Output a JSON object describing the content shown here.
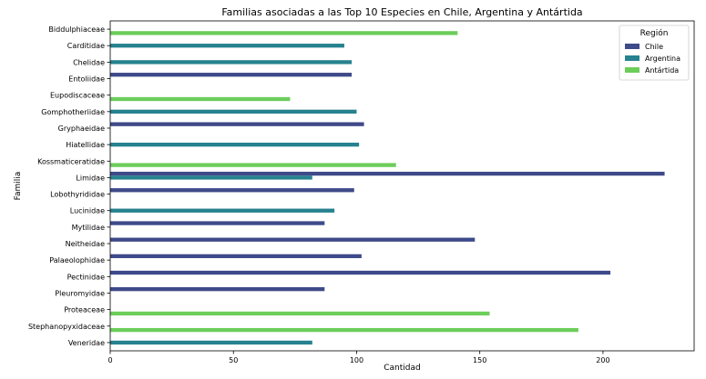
{
  "chart_data": {
    "type": "bar",
    "orientation": "horizontal",
    "title": "Familias asociadas a las Top 10 Especies en Chile, Argentina y Antártida",
    "xlabel": "Cantidad",
    "ylabel": "Familia",
    "xlim": [
      0,
      237
    ],
    "xticks": [
      0,
      50,
      100,
      150,
      200
    ],
    "grid": false,
    "legend": {
      "title": "Región",
      "placement": "top-right"
    },
    "categories": [
      "Biddulphiaceae",
      "Carditidae",
      "Chelidae",
      "Entoliidae",
      "Eupodiscaceae",
      "Gomphotheriidae",
      "Gryphaeidae",
      "Hiatellidae",
      "Kossmaticeratidae",
      "Limidae",
      "Lobothyrididae",
      "Lucinidae",
      "Mytilidae",
      "Neitheidae",
      "Palaeolophidae",
      "Pectinidae",
      "Pleuromyidae",
      "Proteaceae",
      "Stephanopyxidaceae",
      "Veneridae"
    ],
    "series": [
      {
        "name": "Chile",
        "color": "#3e4a89",
        "values": [
          null,
          null,
          null,
          98,
          null,
          null,
          103,
          null,
          null,
          225,
          99,
          null,
          87,
          148,
          102,
          203,
          87,
          null,
          null,
          null
        ]
      },
      {
        "name": "Argentina",
        "color": "#26828e",
        "values": [
          null,
          95,
          98,
          null,
          null,
          100,
          null,
          101,
          null,
          82,
          null,
          91,
          null,
          null,
          null,
          null,
          null,
          null,
          null,
          82
        ]
      },
      {
        "name": "Antártida",
        "color": "#6ccd5a",
        "values": [
          141,
          null,
          null,
          null,
          73,
          null,
          null,
          null,
          116,
          null,
          null,
          null,
          null,
          null,
          null,
          null,
          null,
          154,
          190,
          null
        ]
      }
    ]
  }
}
